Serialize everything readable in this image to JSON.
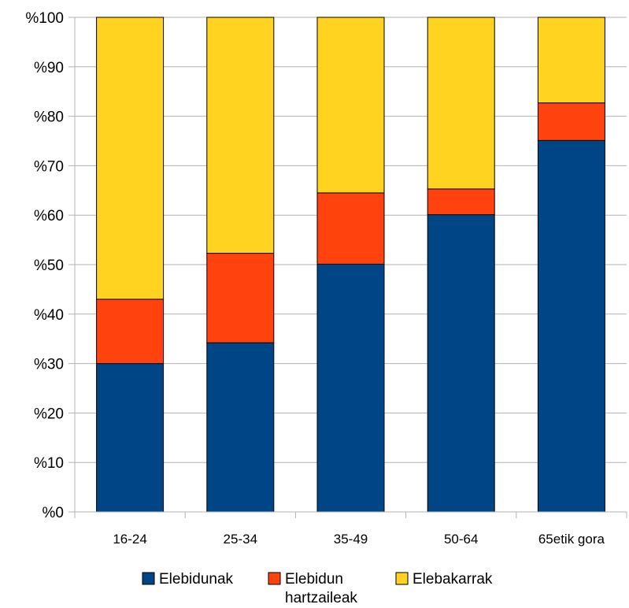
{
  "chart_data": {
    "type": "bar",
    "stacked": true,
    "categories": [
      "16-24",
      "25-34",
      "35-49",
      "50-64",
      "65etik gora"
    ],
    "series": [
      {
        "name": "Elebidunak",
        "color": "#004586",
        "values": [
          30,
          34.2,
          50.1,
          60.1,
          75.1
        ]
      },
      {
        "name": "Elebidun hartzaileak",
        "color": "#ff420e",
        "values": [
          13,
          18.1,
          14.4,
          5.2,
          7.6
        ]
      },
      {
        "name": "Elebakarrak",
        "color": "#ffd320",
        "values": [
          57,
          47.7,
          35.5,
          34.7,
          17.3
        ]
      }
    ],
    "legend_lines": [
      [
        "Elebidunak"
      ],
      [
        "Elebidun",
        "hartzaileak"
      ],
      [
        "Elebakarrak"
      ]
    ],
    "y_ticks": [
      "%0",
      "%10",
      "%20",
      "%30",
      "%40",
      "%50",
      "%60",
      "%70",
      "%80",
      "%90",
      "%100"
    ],
    "ylim": [
      0,
      100
    ],
    "grid": true,
    "legend_position": "bottom",
    "title": "",
    "xlabel": "",
    "ylabel": ""
  }
}
